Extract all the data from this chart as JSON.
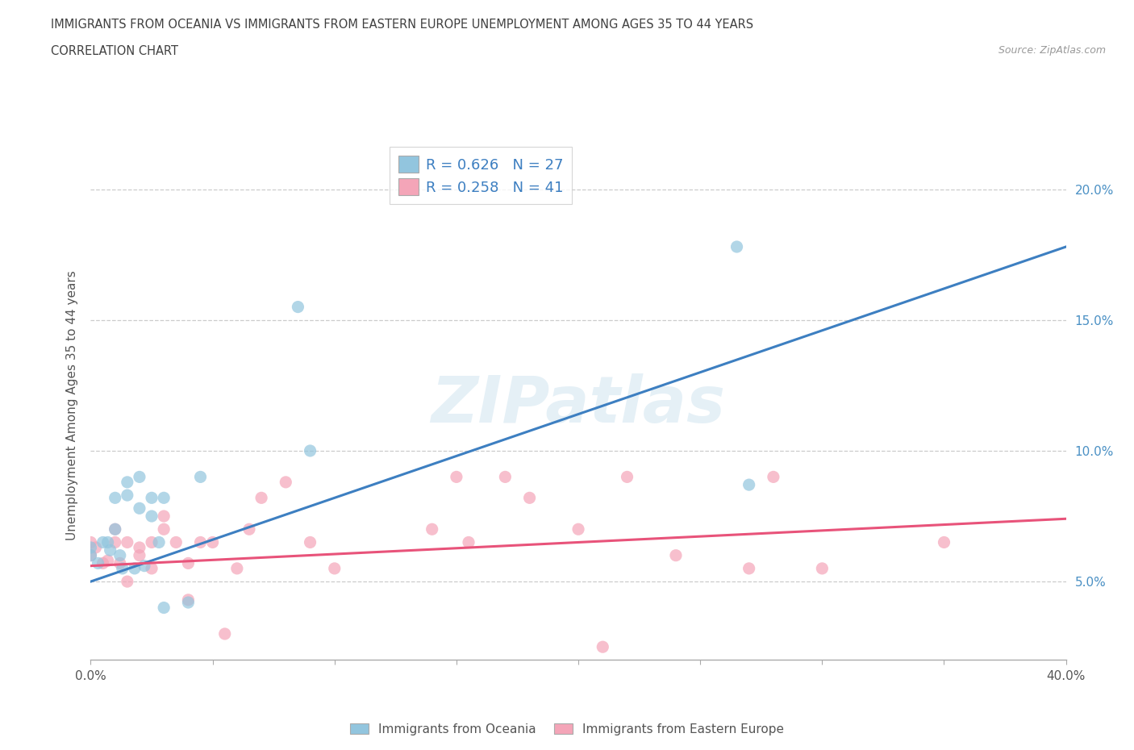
{
  "title_line1": "IMMIGRANTS FROM OCEANIA VS IMMIGRANTS FROM EASTERN EUROPE UNEMPLOYMENT AMONG AGES 35 TO 44 YEARS",
  "title_line2": "CORRELATION CHART",
  "source_text": "Source: ZipAtlas.com",
  "ylabel": "Unemployment Among Ages 35 to 44 years",
  "xlim": [
    0.0,
    0.4
  ],
  "ylim": [
    0.02,
    0.215
  ],
  "xticks": [
    0.0,
    0.05,
    0.1,
    0.15,
    0.2,
    0.25,
    0.3,
    0.35,
    0.4
  ],
  "yticks": [
    0.05,
    0.1,
    0.15,
    0.2
  ],
  "watermark_text": "ZIPatlas",
  "blue_color": "#92c5de",
  "pink_color": "#f4a5b8",
  "blue_line_color": "#3d7fc1",
  "pink_line_color": "#e8537a",
  "oceania_scatter_x": [
    0.0,
    0.0,
    0.003,
    0.005,
    0.007,
    0.008,
    0.01,
    0.01,
    0.012,
    0.013,
    0.015,
    0.015,
    0.018,
    0.02,
    0.02,
    0.022,
    0.025,
    0.025,
    0.028,
    0.03,
    0.03,
    0.04,
    0.045,
    0.085,
    0.09,
    0.265,
    0.27
  ],
  "oceania_scatter_y": [
    0.06,
    0.063,
    0.057,
    0.065,
    0.065,
    0.062,
    0.07,
    0.082,
    0.06,
    0.055,
    0.083,
    0.088,
    0.055,
    0.078,
    0.09,
    0.056,
    0.075,
    0.082,
    0.065,
    0.082,
    0.04,
    0.042,
    0.09,
    0.155,
    0.1,
    0.178,
    0.087
  ],
  "eastern_scatter_x": [
    0.0,
    0.0,
    0.002,
    0.005,
    0.007,
    0.01,
    0.01,
    0.012,
    0.015,
    0.015,
    0.02,
    0.02,
    0.025,
    0.025,
    0.03,
    0.03,
    0.035,
    0.04,
    0.04,
    0.045,
    0.05,
    0.055,
    0.06,
    0.065,
    0.07,
    0.08,
    0.09,
    0.1,
    0.14,
    0.15,
    0.155,
    0.17,
    0.18,
    0.2,
    0.21,
    0.22,
    0.24,
    0.27,
    0.28,
    0.3,
    0.35
  ],
  "eastern_scatter_y": [
    0.06,
    0.065,
    0.063,
    0.057,
    0.058,
    0.07,
    0.065,
    0.057,
    0.05,
    0.065,
    0.06,
    0.063,
    0.065,
    0.055,
    0.07,
    0.075,
    0.065,
    0.043,
    0.057,
    0.065,
    0.065,
    0.03,
    0.055,
    0.07,
    0.082,
    0.088,
    0.065,
    0.055,
    0.07,
    0.09,
    0.065,
    0.09,
    0.082,
    0.07,
    0.025,
    0.09,
    0.06,
    0.055,
    0.09,
    0.055,
    0.065
  ],
  "blue_trend_x": [
    0.0,
    0.4
  ],
  "blue_trend_y": [
    0.05,
    0.178
  ],
  "pink_trend_x": [
    0.0,
    0.4
  ],
  "pink_trend_y": [
    0.056,
    0.074
  ],
  "background_color": "#ffffff",
  "grid_color": "#cccccc",
  "title_color": "#404040",
  "legend_label_blue": "Immigrants from Oceania",
  "legend_label_pink": "Immigrants from Eastern Europe",
  "legend_r1": "R = 0.626   N = 27",
  "legend_r2": "R = 0.258   N = 41"
}
